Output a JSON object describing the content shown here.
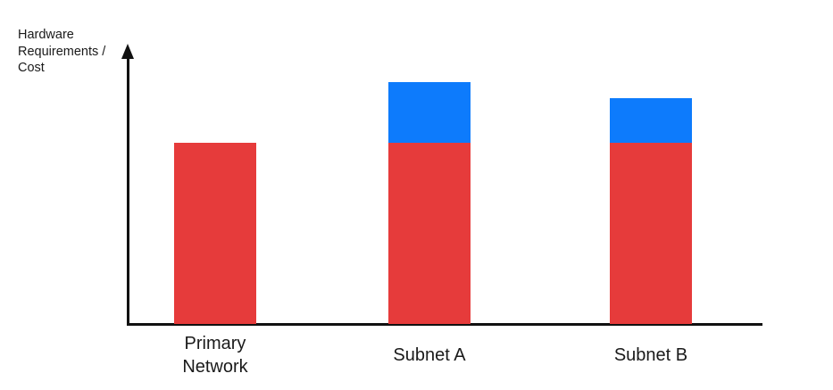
{
  "page": {
    "background": "#FFFFFF"
  },
  "chart_data": {
    "type": "bar",
    "stacked": true,
    "title": "",
    "ylabel": "Hardware\nRequirements /\nCost",
    "xlabel": "",
    "categories": [
      "Primary Network",
      "Subnet A",
      "Subnet B"
    ],
    "series": [
      {
        "name": "red",
        "color": "#E63B3B",
        "values": [
          66,
          66,
          66
        ]
      },
      {
        "name": "blue",
        "color": "#0D7BFC",
        "values": [
          0,
          22,
          16
        ]
      }
    ],
    "ylim": [
      0,
      100
    ],
    "note": "No numeric scale shown on axes; values are relative estimates of bar heights",
    "grid": false,
    "legend": false,
    "axis_color": "#111111",
    "label_color": "#1A1A1A"
  }
}
